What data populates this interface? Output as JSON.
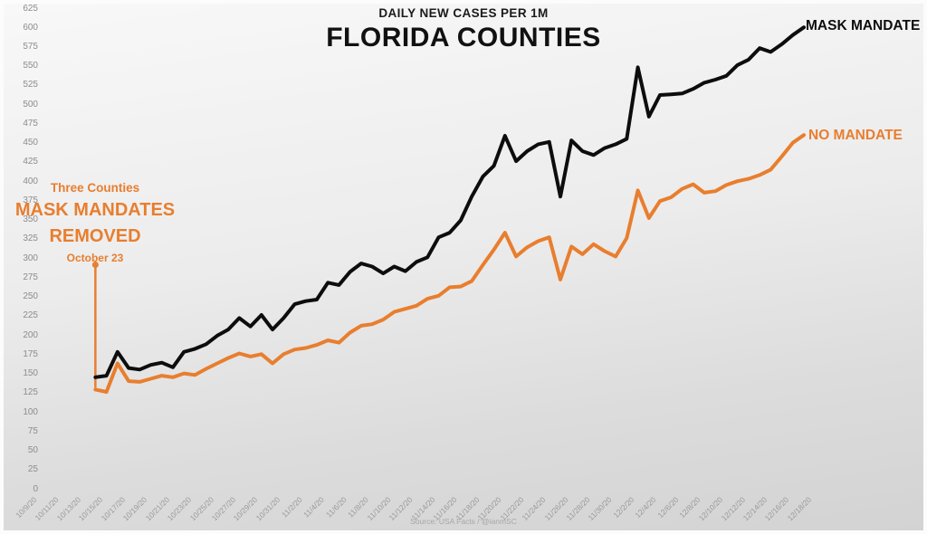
{
  "header": {
    "subtitle": "DAILY NEW CASES PER 1M",
    "title": "FLORIDA COUNTIES"
  },
  "annotation": {
    "lines": [
      "Three Counties",
      "MASK MANDATES",
      "REMOVED",
      "October 23"
    ]
  },
  "series_labels": {
    "mask_mandate": "MASK MANDATE",
    "no_mandate": "NO MANDATE"
  },
  "source": "Source: USA Facts / @ianmSC",
  "colors": {
    "mask_mandate_line": "#0d0d0d",
    "no_mandate_line": "#e87e2e",
    "annotation": "#e87e2e",
    "axis_text": "#8c8c8c",
    "background_top": "#f8f8f8",
    "background_bottom": "#d3d3d3"
  },
  "chart_data": {
    "type": "line",
    "title": "FLORIDA COUNTIES",
    "subtitle": "DAILY NEW CASES PER 1M",
    "xlabel": "",
    "ylabel": "",
    "ylim": [
      0,
      625
    ],
    "y_tick_step": 25,
    "y_tick_labels": [
      "625",
      "600",
      "575",
      "550",
      "525",
      "500",
      "475",
      "450",
      "425",
      "400",
      "375",
      "350",
      "325",
      "300",
      "275",
      "250",
      "225",
      "200",
      "175",
      "150",
      "125",
      "100",
      "75",
      "50",
      "25",
      "0"
    ],
    "x_tick_labels": [
      "10/9/20",
      "10/11/20",
      "10/13/20",
      "10/15/20",
      "10/17/20",
      "10/19/20",
      "10/21/20",
      "10/23/20",
      "10/25/20",
      "10/27/20",
      "10/29/20",
      "10/31/20",
      "11/2/20",
      "11/4/20",
      "11/6/20",
      "11/8/20",
      "11/10/20",
      "11/12/20",
      "11/14/20",
      "11/16/20",
      "11/18/20",
      "11/20/20",
      "11/22/20",
      "11/24/20",
      "11/26/20",
      "11/28/20",
      "11/30/20",
      "12/2/20",
      "12/4/20",
      "12/6/20",
      "12/8/20",
      "12/10/20",
      "12/12/20",
      "12/14/20",
      "12/16/20",
      "12/18/20"
    ],
    "x_axis_start": "10/9/20",
    "data_start_offset_days": 6,
    "grid": false,
    "legend_position": "end-of-line",
    "dates": [
      "10/15/20",
      "10/16/20",
      "10/17/20",
      "10/18/20",
      "10/19/20",
      "10/20/20",
      "10/21/20",
      "10/22/20",
      "10/23/20",
      "10/24/20",
      "10/25/20",
      "10/26/20",
      "10/27/20",
      "10/28/20",
      "10/29/20",
      "10/30/20",
      "10/31/20",
      "11/1/20",
      "11/2/20",
      "11/3/20",
      "11/4/20",
      "11/5/20",
      "11/6/20",
      "11/7/20",
      "11/8/20",
      "11/9/20",
      "11/10/20",
      "11/11/20",
      "11/12/20",
      "11/13/20",
      "11/14/20",
      "11/15/20",
      "11/16/20",
      "11/17/20",
      "11/18/20",
      "11/19/20",
      "11/20/20",
      "11/21/20",
      "11/22/20",
      "11/23/20",
      "11/24/20",
      "11/25/20",
      "11/26/20",
      "11/27/20",
      "11/28/20",
      "11/29/20",
      "11/30/20",
      "12/1/20",
      "12/2/20",
      "12/3/20",
      "12/4/20",
      "12/5/20",
      "12/6/20",
      "12/7/20",
      "12/8/20",
      "12/9/20",
      "12/10/20",
      "12/11/20",
      "12/12/20",
      "12/13/20",
      "12/14/20",
      "12/15/20",
      "12/16/20",
      "12/17/20",
      "12/18/20"
    ],
    "series": [
      {
        "name": "MASK MANDATE",
        "color": "#0d0d0d",
        "values": [
          145,
          147,
          178,
          157,
          155,
          161,
          164,
          158,
          178,
          182,
          188,
          199,
          207,
          222,
          211,
          226,
          207,
          222,
          240,
          244,
          246,
          268,
          265,
          282,
          293,
          289,
          280,
          289,
          283,
          295,
          301,
          327,
          333,
          349,
          380,
          406,
          420,
          459,
          426,
          439,
          448,
          451,
          380,
          453,
          439,
          434,
          443,
          448,
          455,
          548,
          484,
          512,
          513,
          514,
          520,
          528,
          532,
          537,
          551,
          558,
          573,
          568,
          578,
          590,
          600
        ]
      },
      {
        "name": "NO MANDATE",
        "color": "#e87e2e",
        "values": [
          129,
          126,
          163,
          140,
          139,
          143,
          147,
          145,
          150,
          148,
          156,
          163,
          170,
          176,
          172,
          175,
          163,
          175,
          181,
          183,
          187,
          193,
          190,
          203,
          212,
          214,
          220,
          230,
          234,
          238,
          247,
          251,
          262,
          263,
          270,
          291,
          311,
          333,
          302,
          314,
          322,
          327,
          272,
          315,
          305,
          318,
          309,
          302,
          326,
          388,
          352,
          374,
          379,
          390,
          396,
          385,
          387,
          395,
          400,
          403,
          408,
          415,
          432,
          450,
          460
        ]
      }
    ],
    "annotation": {
      "text": [
        "Three Counties",
        "MASK MANDATES",
        "REMOVED",
        "October 23"
      ],
      "marker_date": "10/15/20",
      "marker_value_top": 293,
      "points_to": "start of both series"
    }
  }
}
